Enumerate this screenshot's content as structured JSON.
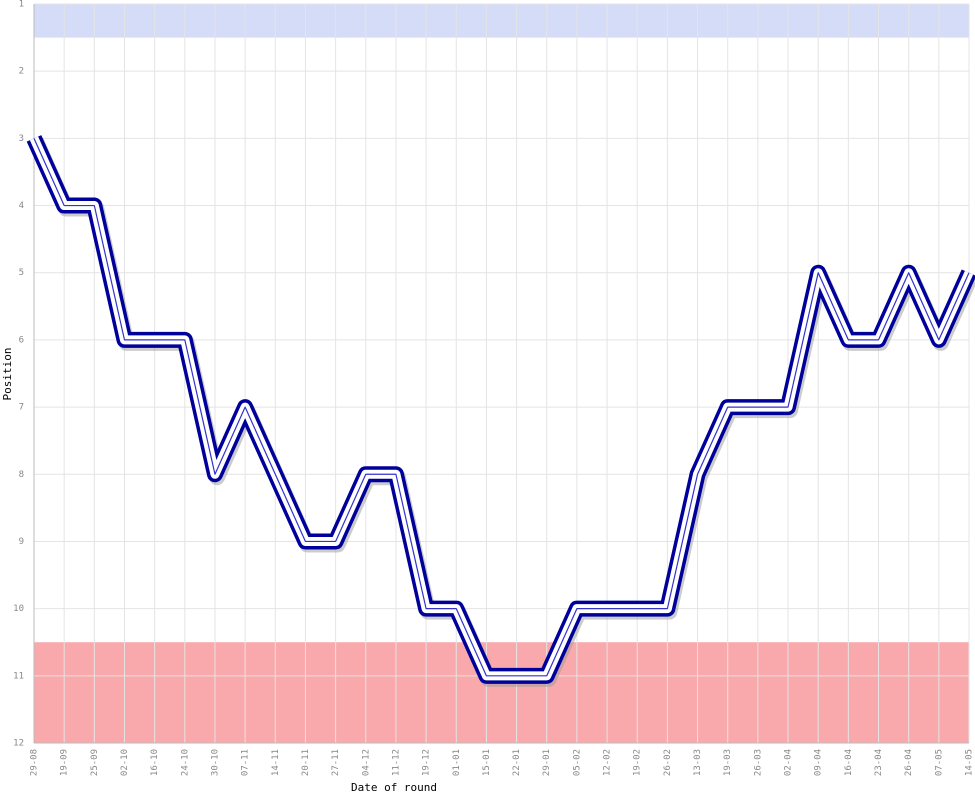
{
  "chart_data": {
    "type": "line",
    "x_label": "Date of round",
    "y_label": "Position",
    "categories": [
      "29-08",
      "19-09",
      "25-09",
      "02-10",
      "16-10",
      "24-10",
      "30-10",
      "07-11",
      "14-11",
      "20-11",
      "27-11",
      "04-12",
      "11-12",
      "19-12",
      "01-01",
      "15-01",
      "22-01",
      "29-01",
      "05-02",
      "12-02",
      "19-02",
      "26-02",
      "13-03",
      "19-03",
      "26-03",
      "02-04",
      "09-04",
      "16-04",
      "23-04",
      "26-04",
      "07-05",
      "14-05"
    ],
    "series": [
      {
        "color": "#00009b",
        "values": [
          3,
          4,
          4,
          6,
          6,
          6,
          8,
          7,
          8,
          9,
          9,
          8,
          8,
          10,
          10,
          11,
          11,
          11,
          10,
          10,
          10,
          10,
          8,
          7,
          7,
          7,
          5,
          6,
          6,
          5,
          6,
          5
        ]
      }
    ],
    "ylim": [
      12,
      1
    ],
    "yticks": [
      1,
      2,
      3,
      4,
      5,
      6,
      7,
      8,
      9,
      10,
      11,
      12
    ],
    "grid": true,
    "bands": [
      {
        "from": 1,
        "to": 1.5,
        "color": "#d5dcf8"
      },
      {
        "from": 10.5,
        "to": 12,
        "color": "#f9a9ab"
      }
    ]
  }
}
